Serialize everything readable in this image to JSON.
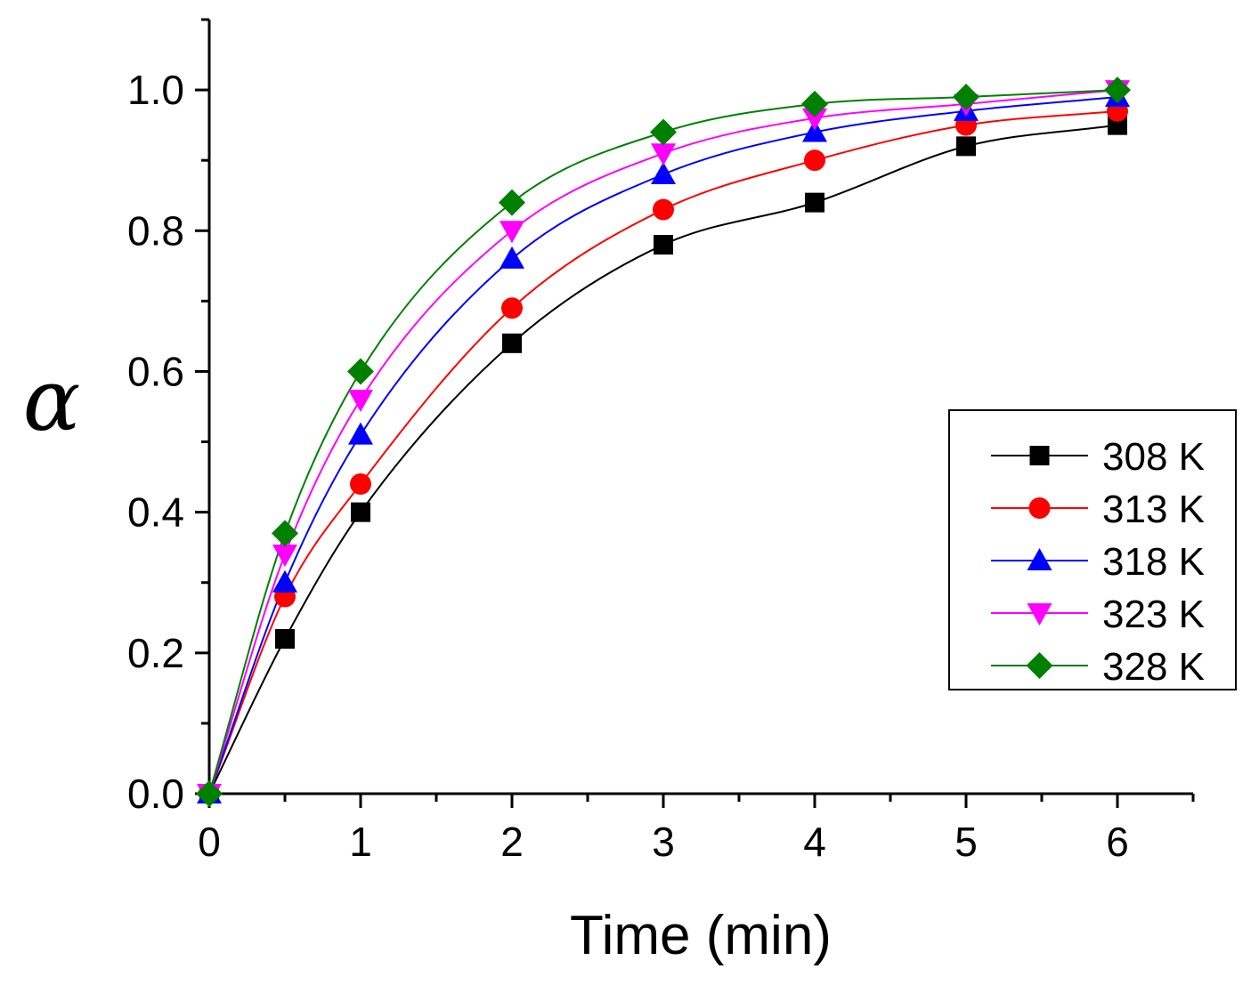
{
  "chart_data": {
    "type": "scatter",
    "title": "",
    "xlabel": "Time (min)",
    "ylabel": "α",
    "xlim": [
      0,
      6.5
    ],
    "ylim": [
      0,
      1.1
    ],
    "xticks": [
      0,
      1,
      2,
      3,
      4,
      5,
      6
    ],
    "xtick_labels": [
      "0",
      "1",
      "2",
      "3",
      "4",
      "5",
      "6"
    ],
    "yticks": [
      0.0,
      0.2,
      0.4,
      0.6,
      0.8,
      1.0
    ],
    "ytick_labels": [
      "0.0",
      "0.2",
      "0.4",
      "0.6",
      "0.8",
      "1.0"
    ],
    "grid": false,
    "legend_position": "right",
    "x": [
      0,
      0.5,
      1,
      2,
      3,
      4,
      5,
      6
    ],
    "series": [
      {
        "name": "308 K",
        "color": "#000000",
        "marker": "square",
        "values": [
          0,
          0.22,
          0.4,
          0.64,
          0.78,
          0.84,
          0.92,
          0.95
        ]
      },
      {
        "name": "313 K",
        "color": "#ff0000",
        "marker": "circle",
        "values": [
          0,
          0.28,
          0.44,
          0.69,
          0.83,
          0.9,
          0.95,
          0.97
        ]
      },
      {
        "name": "318 K",
        "color": "#0000ff",
        "marker": "triangle-up",
        "values": [
          0,
          0.3,
          0.51,
          0.76,
          0.88,
          0.94,
          0.97,
          0.99
        ]
      },
      {
        "name": "323 K",
        "color": "#ff00ff",
        "marker": "triangle-down",
        "values": [
          0,
          0.34,
          0.56,
          0.8,
          0.91,
          0.96,
          0.98,
          1.0
        ]
      },
      {
        "name": "328 K",
        "color": "#008000",
        "marker": "diamond",
        "values": [
          0,
          0.37,
          0.6,
          0.84,
          0.94,
          0.98,
          0.99,
          1.0
        ]
      }
    ]
  }
}
